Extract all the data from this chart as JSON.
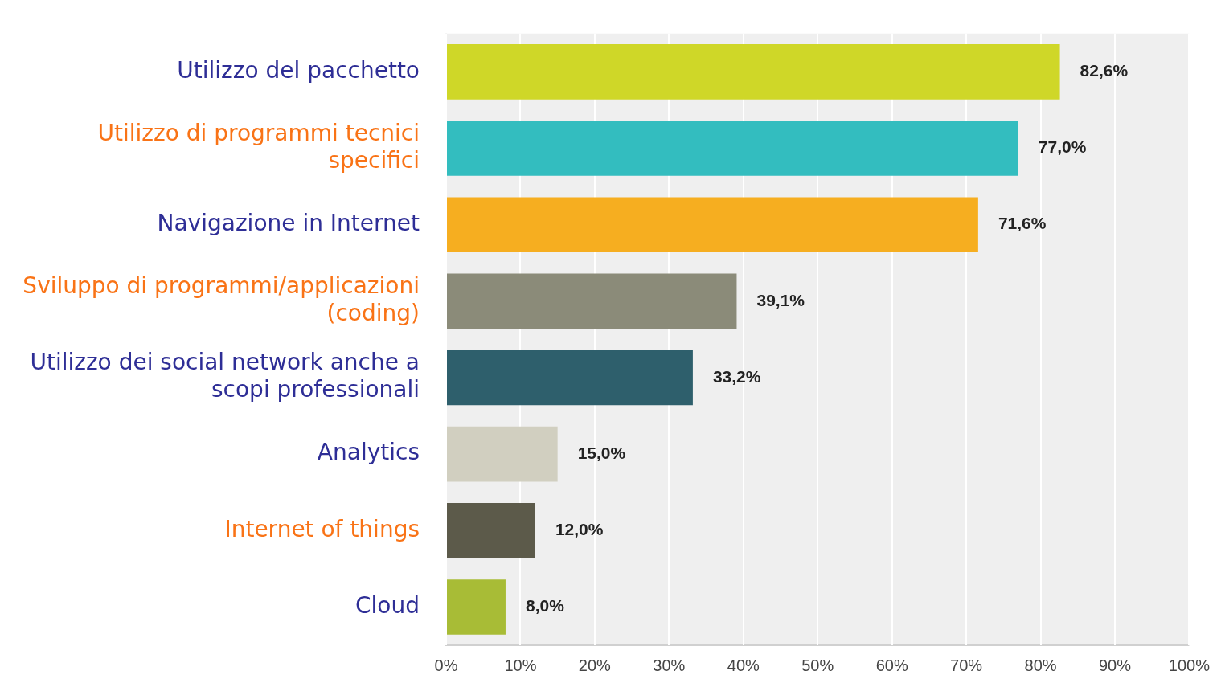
{
  "chart_data": {
    "type": "bar",
    "orientation": "horizontal",
    "categories": [
      "Utilizzo del pacchetto",
      "Utilizzo di programmi tecnici specifici",
      "Navigazione in Internet",
      "Sviluppo di programmi/applicazioni (coding)",
      "Utilizzo dei social network anche a scopi professionali",
      "Analytics",
      "Internet of things",
      "Cloud"
    ],
    "values": [
      82.6,
      77.0,
      71.6,
      39.1,
      33.2,
      15.0,
      12.0,
      8.0
    ],
    "colors": [
      "#cfd728",
      "#33bdbf",
      "#f6ae20",
      "#8b8b79",
      "#2e5f6c",
      "#d1cfc0",
      "#5c5a4a",
      "#a8bc36"
    ],
    "value_labels": [
      "82,6%",
      "77,0%",
      "71,6%",
      "39,1%",
      "33,2%",
      "15,0%",
      "12,0%",
      "8,0%"
    ],
    "xlim": [
      0,
      100
    ],
    "xticks": [
      {
        "value": 0,
        "label": "0%"
      },
      {
        "value": 10,
        "label": "10%"
      },
      {
        "value": 20,
        "label": "20%"
      },
      {
        "value": 30,
        "label": "30%"
      },
      {
        "value": 40,
        "label": "40%"
      },
      {
        "value": 50,
        "label": "50%"
      },
      {
        "value": 60,
        "label": "60%"
      },
      {
        "value": 70,
        "label": "70%"
      },
      {
        "value": 80,
        "label": "80%"
      },
      {
        "value": 90,
        "label": "90%"
      },
      {
        "value": 100,
        "label": "100%"
      }
    ],
    "grid": "x",
    "legend": false
  }
}
